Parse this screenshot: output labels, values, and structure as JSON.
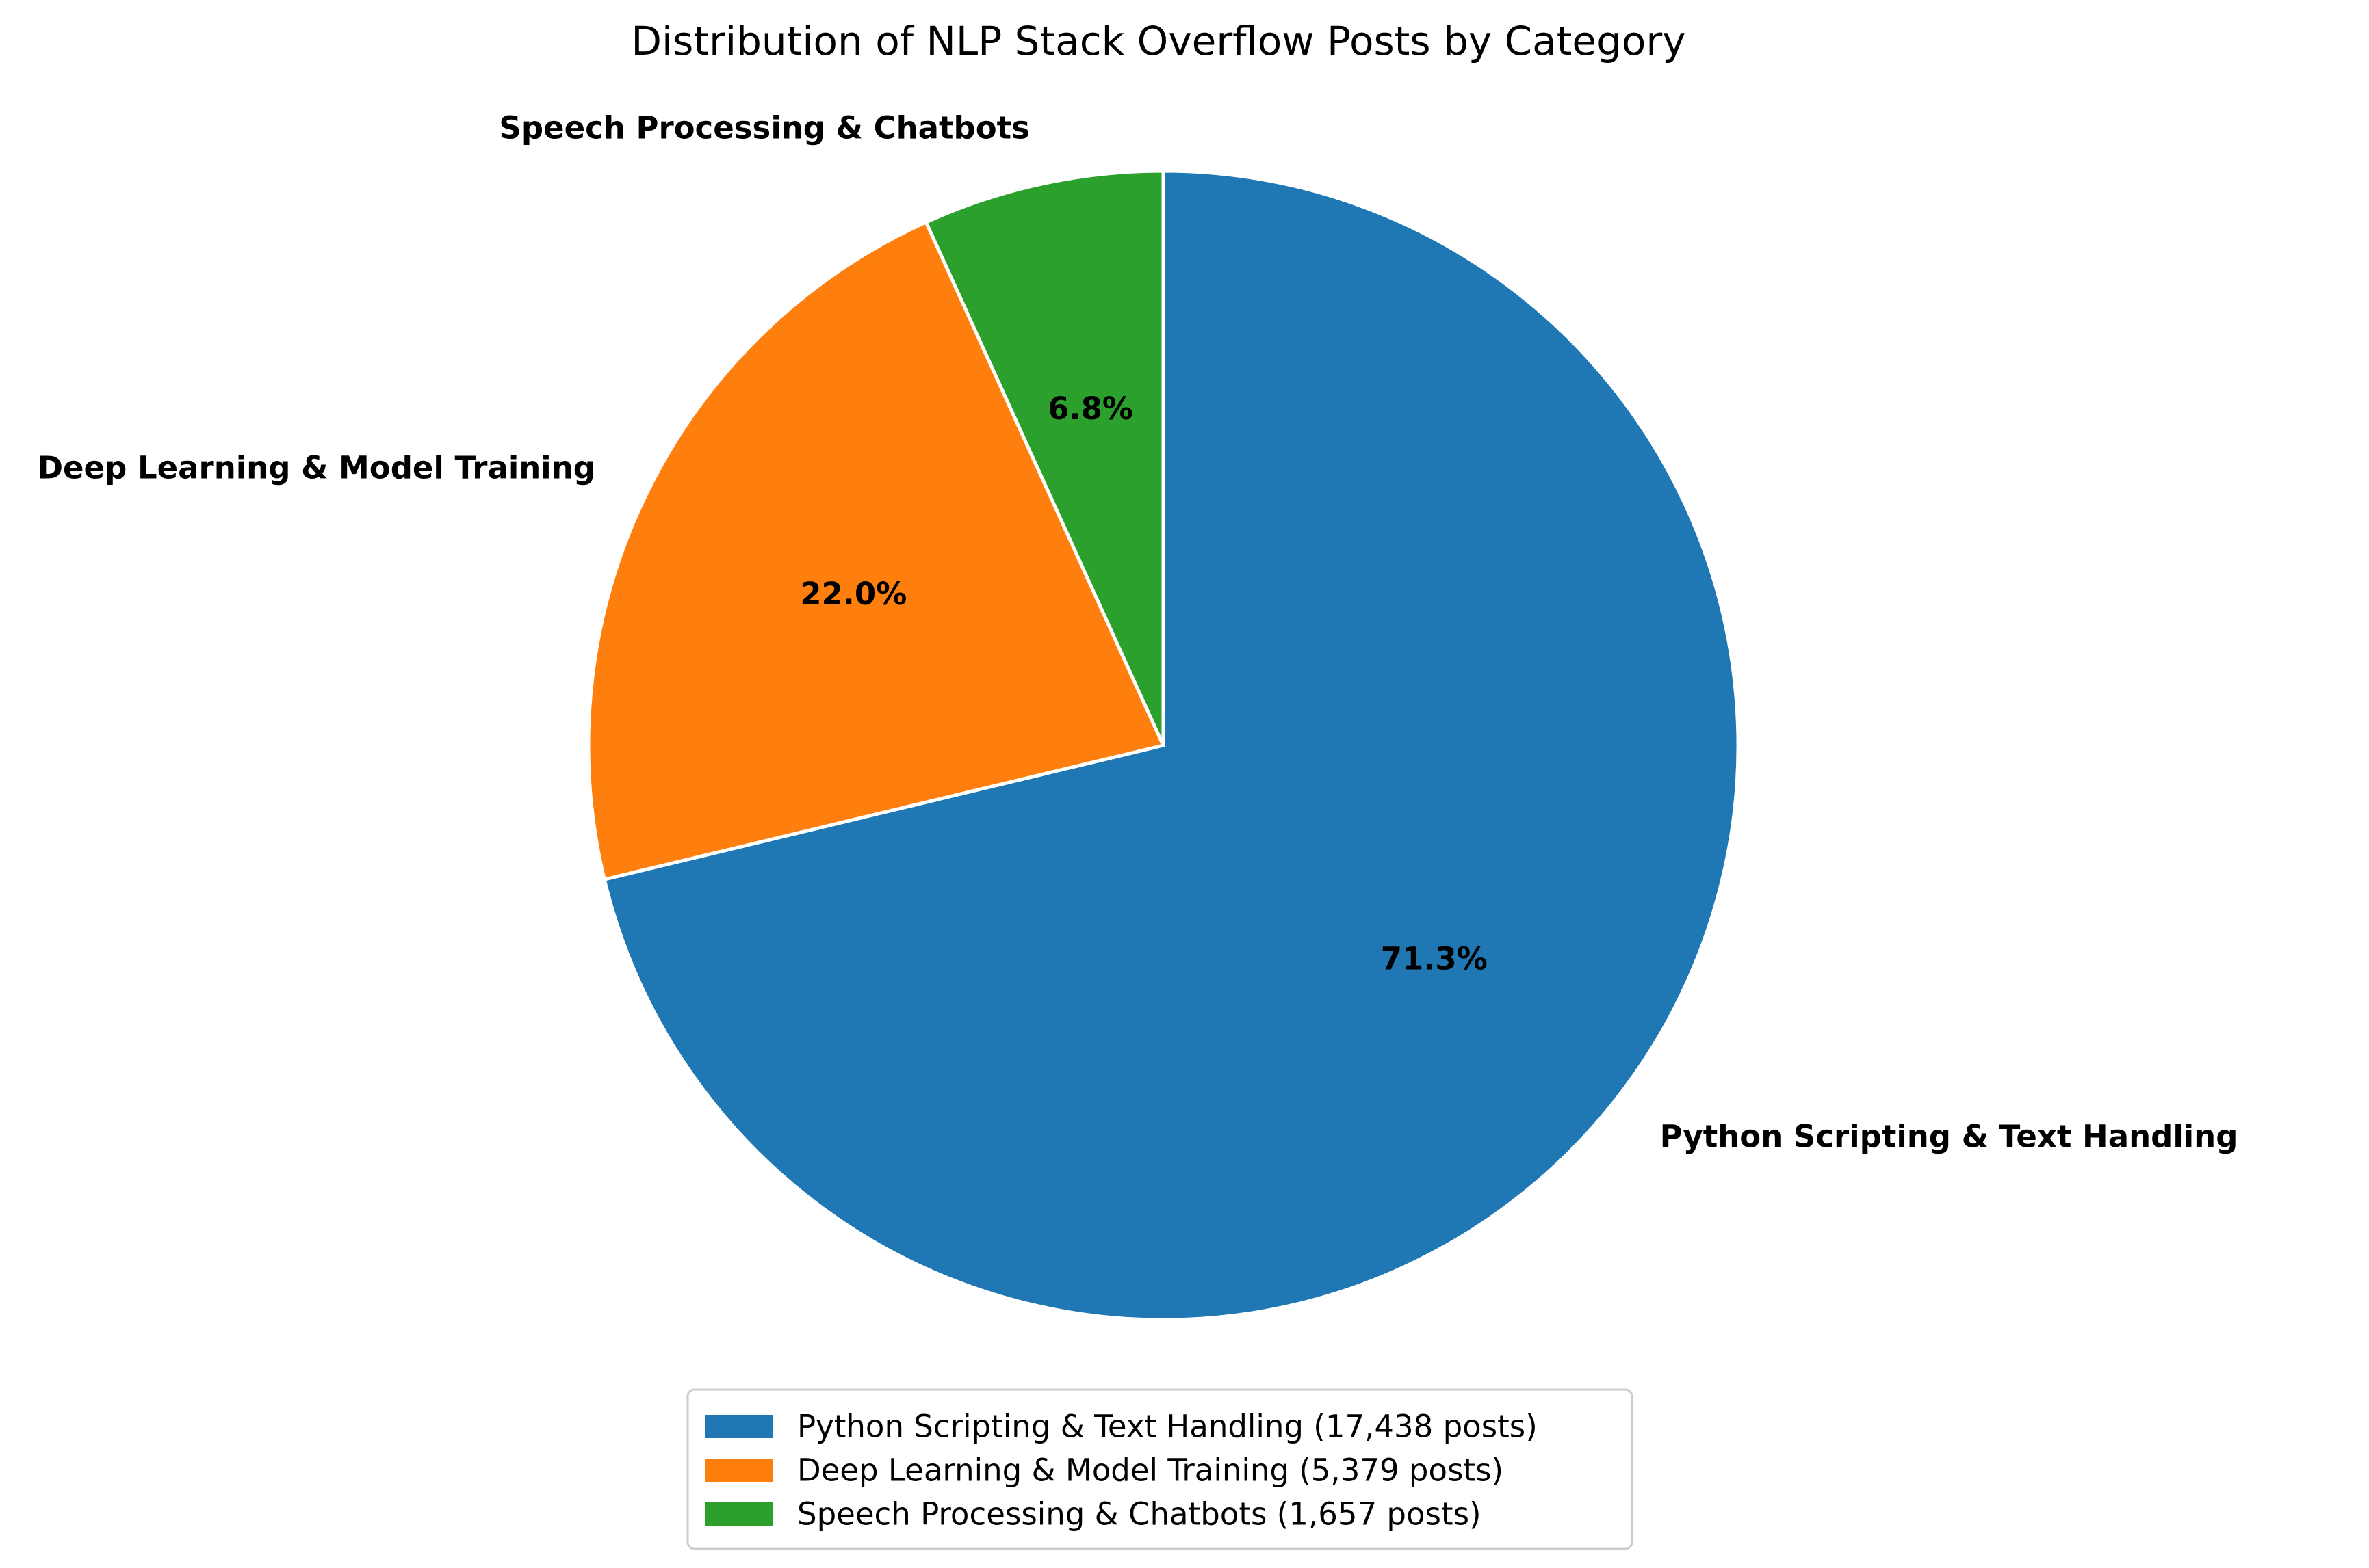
{
  "chart_data": {
    "type": "pie",
    "title": "Distribution of NLP Stack Overflow Posts by Category",
    "start_angle_deg": 90,
    "direction": "clockwise",
    "slices": [
      {
        "label": "Python Scripting & Text Handling",
        "value": 17438,
        "percent_label": "71.3%",
        "legend_label": "Python Scripting & Text Handling (17,438 posts)",
        "color": "#1f77b4"
      },
      {
        "label": "Deep Learning & Model Training",
        "value": 5379,
        "percent_label": "22.0%",
        "legend_label": "Deep Learning & Model Training (5,379 posts)",
        "color": "#ff7f0e"
      },
      {
        "label": "Speech Processing & Chatbots",
        "value": 1657,
        "percent_label": "6.8%",
        "legend_label": "Speech Processing & Chatbots (1,657 posts)",
        "color": "#2ca02c"
      }
    ],
    "legend_position": "bottom-center"
  }
}
